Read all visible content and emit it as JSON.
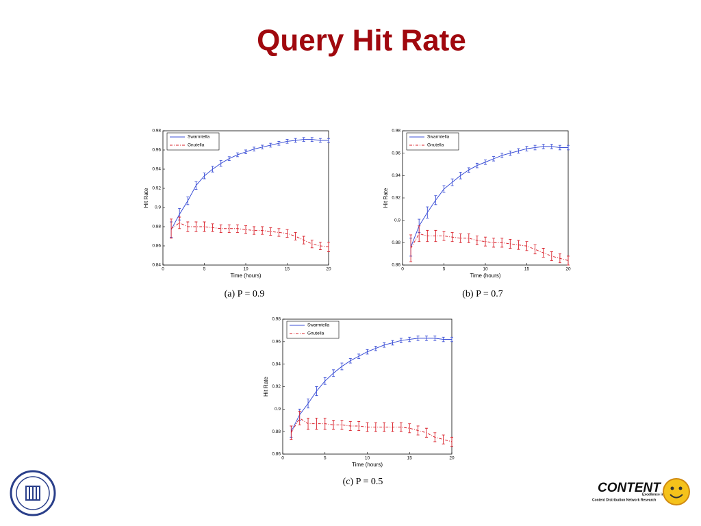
{
  "title": "Query Hit Rate",
  "logo": {
    "name": "CONTENT",
    "tagline_1": "Excellence in",
    "tagline_2": "Content Distribution Network Research"
  },
  "chart_data": [
    {
      "type": "line",
      "caption": "(a) P = 0.9",
      "x_label": "Time (hours)",
      "y_label": "Hit Rate",
      "x": [
        1,
        2,
        3,
        4,
        5,
        6,
        7,
        8,
        9,
        10,
        11,
        12,
        13,
        14,
        15,
        16,
        17,
        18,
        19,
        20
      ],
      "xlim": [
        0,
        20
      ],
      "xticks": [
        0,
        5,
        10,
        15,
        20
      ],
      "ylim": [
        0.84,
        0.98
      ],
      "yticks": [
        0.84,
        0.86,
        0.88,
        0.9,
        0.92,
        0.94,
        0.96,
        0.98
      ],
      "legend": "upper left",
      "series": [
        {
          "name": "Swarmtella",
          "color": "#3b4fd6",
          "dashed": false,
          "values": [
            0.877,
            0.893,
            0.907,
            0.923,
            0.933,
            0.94,
            0.946,
            0.951,
            0.955,
            0.958,
            0.961,
            0.963,
            0.965,
            0.967,
            0.969,
            0.97,
            0.971,
            0.971,
            0.97,
            0.97
          ],
          "errors": [
            0.008,
            0.006,
            0.004,
            0.004,
            0.003,
            0.003,
            0.003,
            0.002,
            0.002,
            0.002,
            0.002,
            0.002,
            0.002,
            0.002,
            0.002,
            0.002,
            0.002,
            0.002,
            0.002,
            0.002
          ]
        },
        {
          "name": "Gnutella",
          "color": "#d9202a",
          "dashed": true,
          "values": [
            0.878,
            0.884,
            0.88,
            0.88,
            0.88,
            0.879,
            0.878,
            0.878,
            0.878,
            0.877,
            0.876,
            0.876,
            0.875,
            0.874,
            0.873,
            0.87,
            0.866,
            0.862,
            0.86,
            0.859
          ],
          "errors": [
            0.01,
            0.006,
            0.005,
            0.005,
            0.005,
            0.004,
            0.004,
            0.004,
            0.004,
            0.004,
            0.004,
            0.004,
            0.004,
            0.004,
            0.004,
            0.004,
            0.004,
            0.004,
            0.004,
            0.005
          ]
        }
      ]
    },
    {
      "type": "line",
      "caption": "(b) P = 0.7",
      "x_label": "Time (hours)",
      "y_label": "Hit Rate",
      "x": [
        1,
        2,
        3,
        4,
        5,
        6,
        7,
        8,
        9,
        10,
        11,
        12,
        13,
        14,
        15,
        16,
        17,
        18,
        19,
        20
      ],
      "xlim": [
        0,
        20
      ],
      "xticks": [
        0,
        5,
        10,
        15,
        20
      ],
      "ylim": [
        0.86,
        0.98
      ],
      "yticks": [
        0.86,
        0.88,
        0.9,
        0.92,
        0.94,
        0.96,
        0.98
      ],
      "legend": "upper left",
      "series": [
        {
          "name": "Swarmtella",
          "color": "#3b4fd6",
          "dashed": false,
          "values": [
            0.876,
            0.895,
            0.907,
            0.918,
            0.928,
            0.934,
            0.94,
            0.945,
            0.949,
            0.952,
            0.955,
            0.958,
            0.96,
            0.962,
            0.964,
            0.965,
            0.966,
            0.966,
            0.965,
            0.965
          ],
          "errors": [
            0.008,
            0.006,
            0.005,
            0.004,
            0.003,
            0.003,
            0.003,
            0.002,
            0.002,
            0.002,
            0.002,
            0.002,
            0.002,
            0.002,
            0.002,
            0.002,
            0.002,
            0.002,
            0.002,
            0.002
          ]
        },
        {
          "name": "Gnutella",
          "color": "#d9202a",
          "dashed": true,
          "values": [
            0.875,
            0.888,
            0.886,
            0.886,
            0.886,
            0.885,
            0.884,
            0.884,
            0.882,
            0.881,
            0.88,
            0.88,
            0.879,
            0.878,
            0.877,
            0.874,
            0.871,
            0.868,
            0.866,
            0.864
          ],
          "errors": [
            0.012,
            0.007,
            0.005,
            0.005,
            0.004,
            0.004,
            0.004,
            0.004,
            0.004,
            0.004,
            0.004,
            0.004,
            0.004,
            0.004,
            0.004,
            0.004,
            0.004,
            0.004,
            0.004,
            0.004
          ]
        }
      ]
    },
    {
      "type": "line",
      "caption": "(c) P = 0.5",
      "x_label": "Time (hours)",
      "y_label": "Hit Rate",
      "x": [
        1,
        2,
        3,
        4,
        5,
        6,
        7,
        8,
        9,
        10,
        11,
        12,
        13,
        14,
        15,
        16,
        17,
        18,
        19,
        20
      ],
      "xlim": [
        0,
        20
      ],
      "xticks": [
        0,
        5,
        10,
        15,
        20
      ],
      "ylim": [
        0.86,
        0.98
      ],
      "yticks": [
        0.86,
        0.88,
        0.9,
        0.92,
        0.94,
        0.96,
        0.98
      ],
      "legend": "upper left",
      "series": [
        {
          "name": "Swarmtella",
          "color": "#3b4fd6",
          "dashed": false,
          "values": [
            0.88,
            0.895,
            0.905,
            0.916,
            0.925,
            0.932,
            0.938,
            0.943,
            0.947,
            0.951,
            0.954,
            0.957,
            0.959,
            0.961,
            0.962,
            0.963,
            0.963,
            0.963,
            0.962,
            0.962
          ],
          "errors": [
            0.005,
            0.005,
            0.004,
            0.004,
            0.003,
            0.003,
            0.003,
            0.002,
            0.002,
            0.002,
            0.002,
            0.002,
            0.002,
            0.002,
            0.002,
            0.002,
            0.002,
            0.002,
            0.002,
            0.002
          ]
        },
        {
          "name": "Gnutella",
          "color": "#d9202a",
          "dashed": true,
          "values": [
            0.879,
            0.892,
            0.887,
            0.887,
            0.887,
            0.886,
            0.886,
            0.885,
            0.885,
            0.884,
            0.884,
            0.884,
            0.884,
            0.884,
            0.883,
            0.881,
            0.879,
            0.875,
            0.873,
            0.871
          ],
          "errors": [
            0.006,
            0.006,
            0.005,
            0.005,
            0.005,
            0.004,
            0.004,
            0.004,
            0.004,
            0.004,
            0.004,
            0.004,
            0.004,
            0.004,
            0.004,
            0.004,
            0.004,
            0.004,
            0.004,
            0.004
          ]
        }
      ]
    }
  ]
}
